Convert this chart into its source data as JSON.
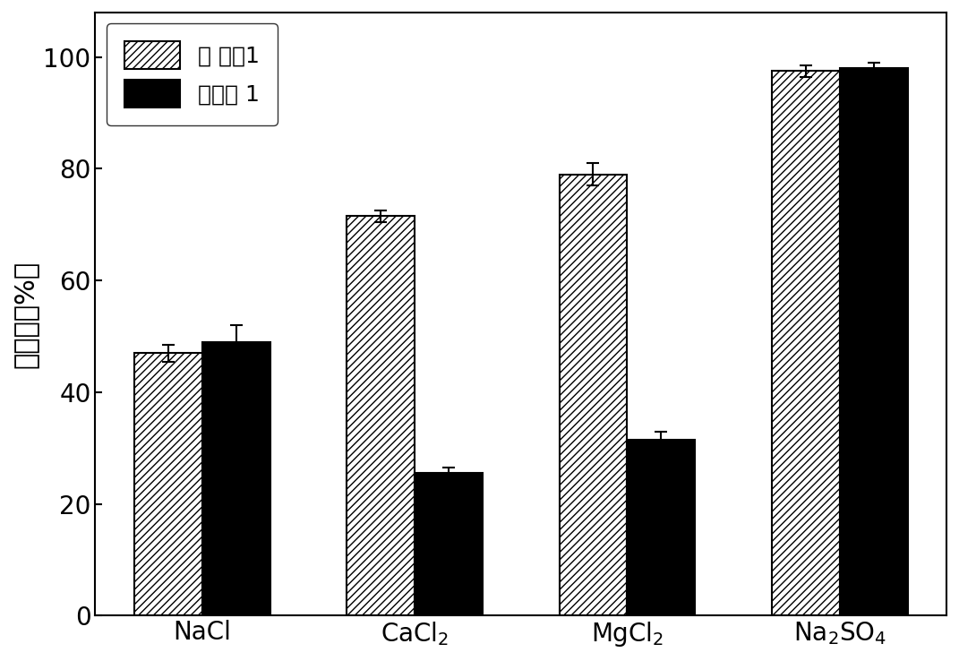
{
  "series1_label": "比 较例1",
  "series2_label": "实施例 1",
  "series1_values": [
    47.0,
    71.5,
    79.0,
    97.5
  ],
  "series2_values": [
    49.0,
    25.5,
    31.5,
    98.0
  ],
  "series1_errors": [
    1.5,
    1.0,
    2.0,
    1.0
  ],
  "series2_errors": [
    3.0,
    1.0,
    1.5,
    1.0
  ],
  "ylabel": "截留率（%）",
  "ylim": [
    0,
    108
  ],
  "yticks": [
    0,
    20,
    40,
    60,
    80,
    100
  ],
  "bar_width": 0.32,
  "hatch_pattern": "////",
  "series1_facecolor": "white",
  "series1_edgecolor": "black",
  "series2_facecolor": "black",
  "series2_edgecolor": "black",
  "legend_loc": "upper left",
  "figsize": [
    10.71,
    7.38
  ],
  "dpi": 100,
  "fontsize_ticks": 20,
  "fontsize_ylabel": 22,
  "fontsize_legend": 18,
  "fontsize_xticks": 20
}
